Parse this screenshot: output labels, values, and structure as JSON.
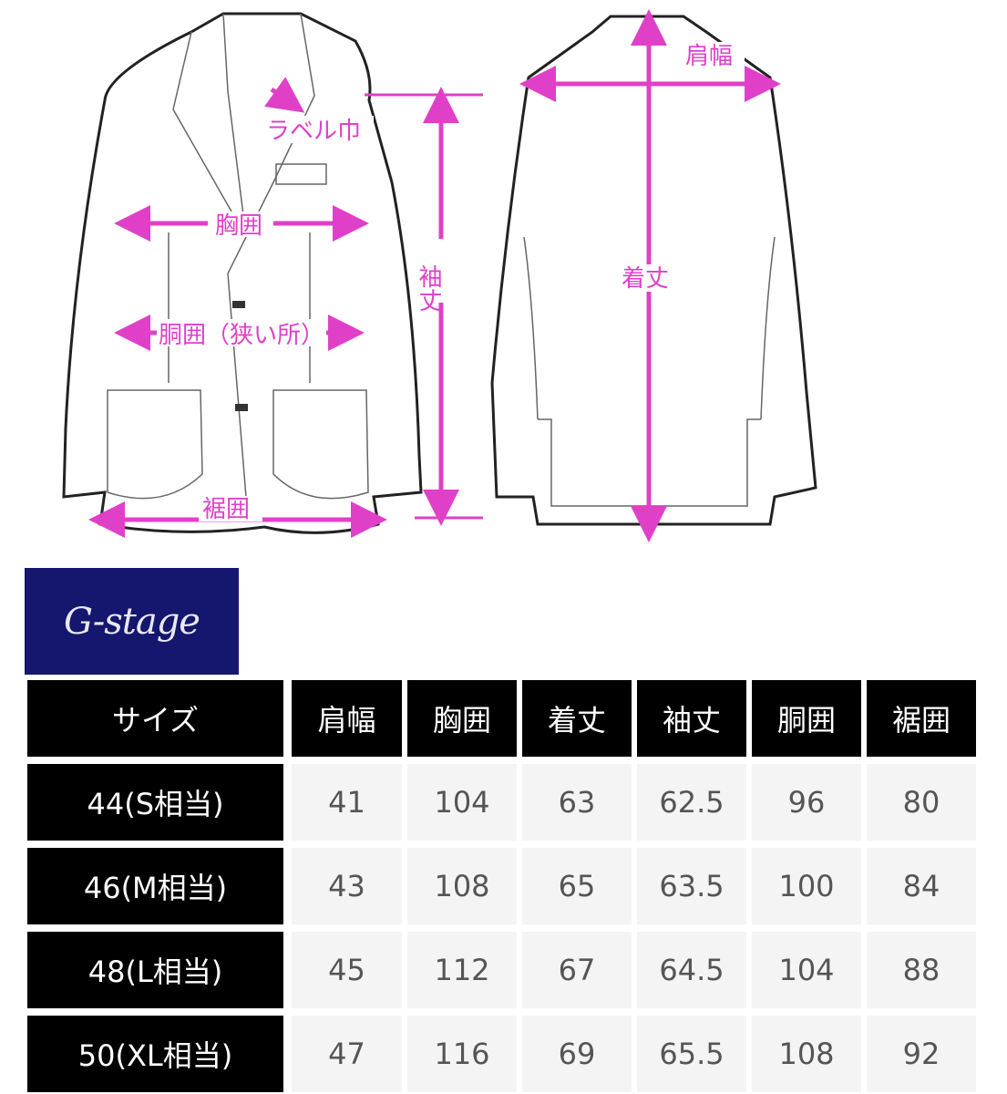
{
  "diagram": {
    "labels": {
      "lapel_width": "ラベル巾",
      "chest": "胸囲",
      "sleeve_length": "袖丈",
      "waist": "胴囲（狭い所）",
      "hem": "裾囲",
      "shoulder_width": "肩幅",
      "length": "着丈"
    },
    "accent_color": "#e040c8"
  },
  "logo": {
    "text": "G-stage",
    "background": "#15166e"
  },
  "table": {
    "headers": [
      "サイズ",
      "肩幅",
      "胸囲",
      "着丈",
      "袖丈",
      "胴囲",
      "裾囲"
    ],
    "rows": [
      [
        "44(S相当)",
        "41",
        "104",
        "63",
        "62.5",
        "96",
        "80"
      ],
      [
        "46(M相当)",
        "43",
        "108",
        "65",
        "63.5",
        "100",
        "84"
      ],
      [
        "48(L相当)",
        "45",
        "112",
        "67",
        "64.5",
        "104",
        "88"
      ],
      [
        "50(XL相当)",
        "47",
        "116",
        "69",
        "65.5",
        "108",
        "92"
      ]
    ]
  }
}
